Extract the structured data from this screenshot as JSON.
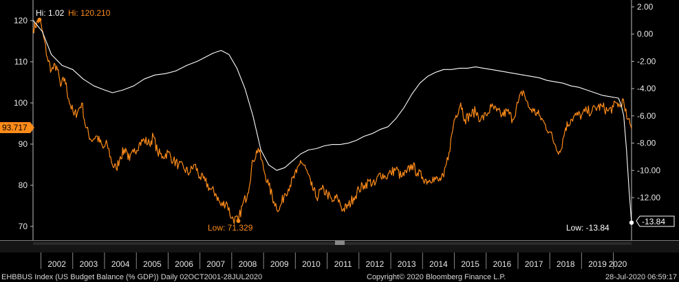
{
  "chart_data": {
    "type": "line",
    "x_range": [
      "2001-10-02",
      "2020-07-28"
    ],
    "y_left": {
      "ylim": [
        68,
        123
      ],
      "ticks": [
        70,
        80,
        90,
        100,
        110,
        120
      ]
    },
    "y_right": {
      "ylim": [
        -14.0,
        2.7
      ],
      "ticks": [
        "2.00",
        "0.00",
        "-2.00",
        "-4.00",
        "-6.00",
        "-8.00",
        "-10.00",
        "-12.00"
      ]
    },
    "x_ticks": [
      "2002",
      "2003",
      "2004",
      "2005",
      "2006",
      "2007",
      "2008",
      "2009",
      "2010",
      "2011",
      "2012",
      "2013",
      "2014",
      "2015",
      "2016",
      "2017",
      "2018",
      "2019",
      "2020"
    ],
    "annotations": {
      "hi_white": "Hi: 1.02",
      "hi_orange": "Hi: 120.210",
      "low_orange": "Low: 71.329",
      "low_white": "Low: -13.84",
      "last_orange": "93.717",
      "last_white": "-13.84"
    },
    "series": [
      {
        "color": "#ff8c1a",
        "axis": "left",
        "x": [
          "2001-10-02",
          "2001-12-15",
          "2002-02-01",
          "2002-03-15",
          "2002-05-01",
          "2002-07-01",
          "2002-08-15",
          "2002-10-01",
          "2002-11-15",
          "2003-01-15",
          "2003-03-01",
          "2003-04-15",
          "2003-06-01",
          "2003-08-01",
          "2003-10-01",
          "2003-12-15",
          "2004-02-01",
          "2004-04-01",
          "2004-05-15",
          "2004-07-01",
          "2004-09-01",
          "2004-10-15",
          "2004-12-01",
          "2005-02-01",
          "2005-04-01",
          "2005-06-01",
          "2005-07-15",
          "2005-09-01",
          "2005-11-01",
          "2006-01-01",
          "2006-03-01",
          "2006-05-01",
          "2006-07-01",
          "2006-09-01",
          "2006-11-01",
          "2007-01-01",
          "2007-03-01",
          "2007-05-01",
          "2007-07-01",
          "2007-09-01",
          "2007-11-01",
          "2008-01-01",
          "2008-03-17",
          "2008-05-01",
          "2008-07-01",
          "2008-09-01",
          "2008-11-01",
          "2009-01-01",
          "2009-03-01",
          "2009-05-01",
          "2009-07-01",
          "2009-09-01",
          "2009-11-01",
          "2010-01-15",
          "2010-03-01",
          "2010-05-01",
          "2010-07-01",
          "2010-09-01",
          "2010-11-01",
          "2011-01-01",
          "2011-03-01",
          "2011-05-01",
          "2011-07-01",
          "2011-09-01",
          "2011-11-01",
          "2012-01-01",
          "2012-03-01",
          "2012-05-01",
          "2012-07-01",
          "2012-09-01",
          "2012-11-01",
          "2013-01-01",
          "2013-03-01",
          "2013-05-01",
          "2013-07-01",
          "2013-09-01",
          "2013-11-01",
          "2014-01-01",
          "2014-03-01",
          "2014-05-01",
          "2014-07-01",
          "2014-09-01",
          "2014-11-01",
          "2015-01-01",
          "2015-03-15",
          "2015-05-01",
          "2015-07-01",
          "2015-09-01",
          "2015-11-01",
          "2016-01-01",
          "2016-03-01",
          "2016-05-01",
          "2016-07-01",
          "2016-09-01",
          "2016-11-01",
          "2017-01-01",
          "2017-03-01",
          "2017-05-01",
          "2017-07-01",
          "2017-09-01",
          "2017-11-01",
          "2018-01-01",
          "2018-03-01",
          "2018-05-01",
          "2018-07-01",
          "2018-09-01",
          "2018-11-01",
          "2019-01-01",
          "2019-03-01",
          "2019-05-01",
          "2019-07-01",
          "2019-09-01",
          "2019-11-01",
          "2020-01-01",
          "2020-02-15",
          "2020-03-20",
          "2020-04-15",
          "2020-05-15",
          "2020-06-15",
          "2020-07-28"
        ],
        "y": [
          118,
          120.21,
          116,
          111,
          108,
          109,
          104,
          106,
          101,
          97,
          98,
          100,
          94,
          91,
          92,
          89,
          90,
          85,
          84,
          87,
          89,
          86,
          88,
          90,
          91,
          90,
          92,
          88,
          87,
          88,
          86,
          85,
          84,
          83,
          85,
          82,
          81,
          79,
          78,
          75,
          76,
          72,
          71.329,
          75,
          78,
          86,
          89,
          84,
          80,
          76,
          74,
          78,
          80,
          83,
          86,
          84,
          80,
          77,
          79,
          78,
          76,
          77,
          74,
          75,
          77,
          79,
          80,
          81,
          80,
          83,
          82,
          83,
          84,
          82,
          83,
          85,
          83,
          82,
          81,
          82,
          81,
          82,
          88,
          96,
          100,
          96,
          97,
          98,
          96,
          97,
          99,
          98,
          97,
          98,
          96,
          100,
          103,
          99,
          98,
          97,
          95,
          93,
          90,
          88,
          94,
          96,
          97,
          97,
          98,
          98,
          99,
          99,
          98,
          99,
          100,
          99,
          101,
          98,
          96,
          93.717
        ],
        "dense": true
      },
      {
        "color": "#ffffff",
        "axis": "right",
        "x": [
          "2001-10-02",
          "2002-01-15",
          "2002-05-01",
          "2002-09-01",
          "2003-01-01",
          "2003-05-01",
          "2003-09-01",
          "2004-01-01",
          "2004-04-01",
          "2004-08-01",
          "2004-12-01",
          "2005-04-01",
          "2005-08-01",
          "2005-12-01",
          "2006-04-01",
          "2006-08-01",
          "2006-12-01",
          "2007-03-01",
          "2007-06-01",
          "2007-09-01",
          "2007-12-01",
          "2008-03-01",
          "2008-06-01",
          "2008-09-01",
          "2008-12-01",
          "2009-03-01",
          "2009-06-01",
          "2009-09-01",
          "2009-12-01",
          "2010-03-01",
          "2010-06-01",
          "2010-09-01",
          "2010-12-01",
          "2011-03-01",
          "2011-06-01",
          "2011-09-01",
          "2011-12-01",
          "2012-03-01",
          "2012-06-01",
          "2012-09-01",
          "2012-12-01",
          "2013-03-01",
          "2013-06-01",
          "2013-09-01",
          "2013-12-01",
          "2014-03-01",
          "2014-06-01",
          "2014-09-01",
          "2014-12-01",
          "2015-03-01",
          "2015-06-01",
          "2015-09-01",
          "2015-12-01",
          "2016-03-01",
          "2016-06-01",
          "2016-09-01",
          "2016-12-01",
          "2017-03-01",
          "2017-06-01",
          "2017-09-01",
          "2017-12-01",
          "2018-03-01",
          "2018-06-01",
          "2018-09-01",
          "2018-12-01",
          "2019-03-01",
          "2019-06-01",
          "2019-09-01",
          "2019-12-01",
          "2020-02-29",
          "2020-03-31",
          "2020-04-30",
          "2020-05-31",
          "2020-06-30",
          "2020-07-28"
        ],
        "y": [
          1.02,
          0.2,
          -1.5,
          -2.3,
          -2.6,
          -3.3,
          -3.8,
          -4.1,
          -4.3,
          -4.1,
          -3.8,
          -3.3,
          -3.0,
          -2.9,
          -2.7,
          -2.3,
          -2.0,
          -1.7,
          -1.4,
          -1.2,
          -1.5,
          -2.5,
          -4.0,
          -6.0,
          -8.5,
          -9.6,
          -10.0,
          -9.8,
          -9.3,
          -8.8,
          -8.5,
          -8.4,
          -8.2,
          -8.1,
          -8.1,
          -8.0,
          -7.8,
          -7.5,
          -7.3,
          -7.0,
          -6.8,
          -6.2,
          -5.4,
          -4.4,
          -3.6,
          -3.1,
          -2.8,
          -2.6,
          -2.6,
          -2.5,
          -2.5,
          -2.4,
          -2.5,
          -2.6,
          -2.7,
          -2.8,
          -2.9,
          -3.0,
          -3.1,
          -3.2,
          -3.4,
          -3.5,
          -3.6,
          -3.8,
          -3.9,
          -4.1,
          -4.3,
          -4.5,
          -4.6,
          -4.7,
          -5.2,
          -6.0,
          -8.5,
          -11.5,
          -13.84
        ]
      }
    ]
  },
  "footer": {
    "left": "EHBBUS Index (US Budget Balance (% GDP))  Daily 02OCT2001-28JUL2020",
    "center": "Copyright© 2020 Bloomberg Finance L.P.",
    "right": "28-Jul-2020 06:59:17"
  }
}
